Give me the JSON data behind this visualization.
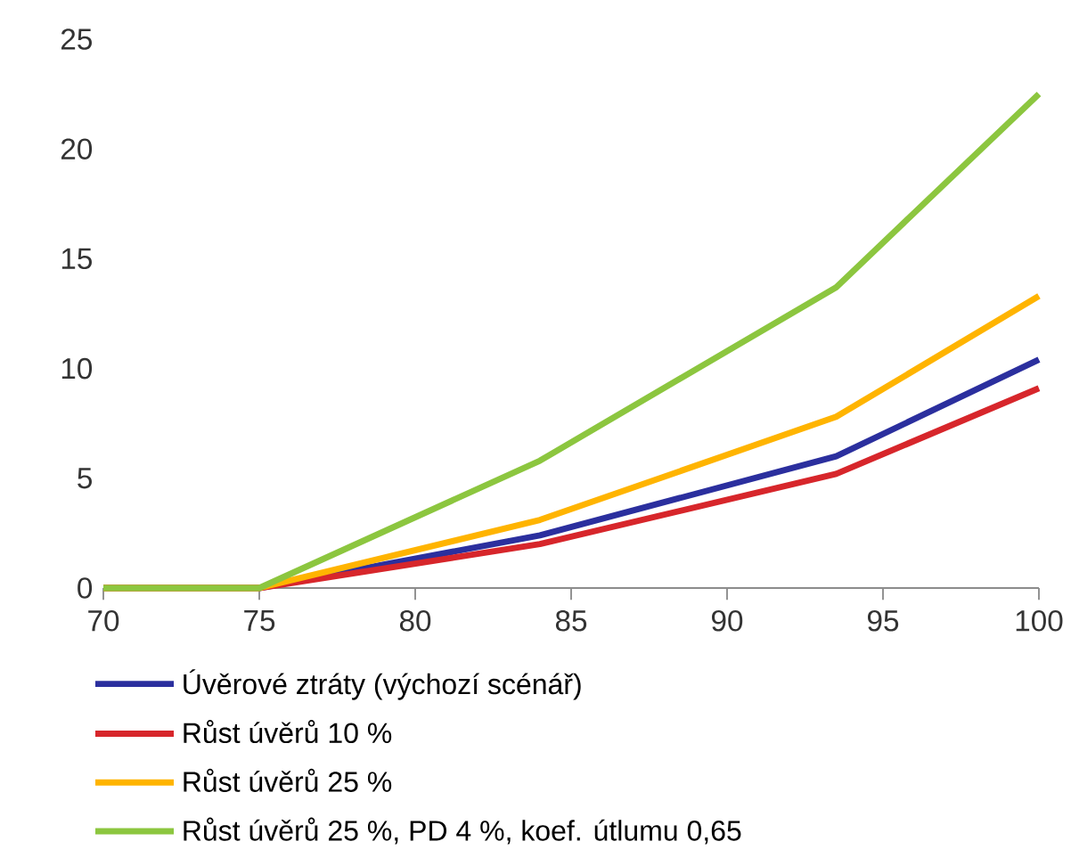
{
  "chart_data": {
    "type": "line",
    "x": [
      70,
      75,
      84,
      93.5,
      100
    ],
    "xlim": [
      70,
      100
    ],
    "ylim": [
      0,
      25
    ],
    "xticks": [
      70,
      75,
      80,
      85,
      90,
      95,
      100
    ],
    "yticks": [
      0,
      5,
      10,
      15,
      20,
      25
    ],
    "grid": false,
    "legend": "bottom",
    "marker": "none",
    "line_style": "solid",
    "series": [
      {
        "name": "Úvěrové ztráty (výchozí scénář)",
        "color": "#2b2f9e",
        "values": [
          0,
          0,
          2.4,
          6.0,
          10.4
        ]
      },
      {
        "name": "Růst úvěrů 10 %",
        "color": "#d7262b",
        "values": [
          0,
          0,
          2.0,
          5.2,
          9.1
        ]
      },
      {
        "name": "Růst úvěrů 25 %",
        "color": "#ffb400",
        "values": [
          0,
          0,
          3.1,
          7.8,
          13.3
        ]
      },
      {
        "name": "Růst úvěrů 25 %, PD 4 %, koef. útlumu 0,65",
        "color": "#8cc63f",
        "values": [
          0,
          0,
          5.8,
          13.7,
          22.5
        ]
      }
    ]
  }
}
